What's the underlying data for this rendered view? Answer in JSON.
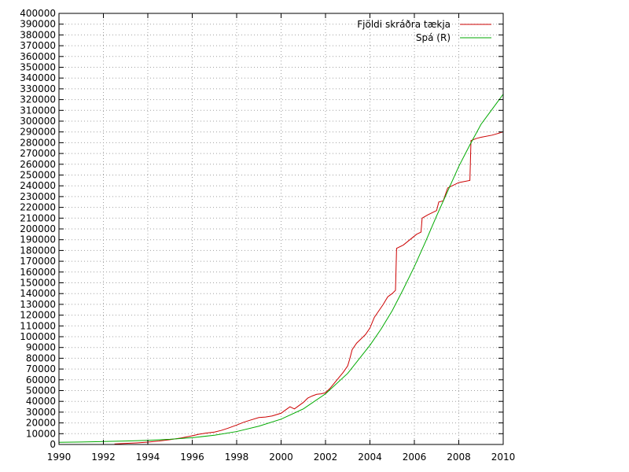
{
  "chart_data": {
    "type": "line",
    "title": "",
    "xlabel": "",
    "ylabel": "",
    "xlim": [
      1990,
      2010
    ],
    "ylim": [
      0,
      400000
    ],
    "x_ticks": [
      1990,
      1992,
      1994,
      1996,
      1998,
      2000,
      2002,
      2004,
      2006,
      2008,
      2010
    ],
    "x_tick_labels": [
      "1990",
      "1992",
      "1994",
      "1996",
      "1998",
      "2000",
      "2002",
      "2004",
      "2006",
      "2008",
      "2010"
    ],
    "y_ticks": [
      0,
      10000,
      20000,
      30000,
      40000,
      50000,
      60000,
      70000,
      80000,
      90000,
      100000,
      110000,
      120000,
      130000,
      140000,
      150000,
      160000,
      170000,
      180000,
      190000,
      200000,
      210000,
      220000,
      230000,
      240000,
      250000,
      260000,
      270000,
      280000,
      290000,
      300000,
      310000,
      320000,
      330000,
      340000,
      350000,
      360000,
      370000,
      380000,
      390000,
      400000
    ],
    "y_tick_labels": [
      "0",
      "10000",
      "20000",
      "30000",
      "40000",
      "50000",
      "60000",
      "70000",
      "80000",
      "90000",
      "100000",
      "110000",
      "120000",
      "130000",
      "140000",
      "150000",
      "160000",
      "170000",
      "180000",
      "190000",
      "200000",
      "210000",
      "220000",
      "230000",
      "240000",
      "250000",
      "260000",
      "270000",
      "280000",
      "290000",
      "300000",
      "310000",
      "320000",
      "330000",
      "340000",
      "350000",
      "360000",
      "370000",
      "380000",
      "390000",
      "400000"
    ],
    "grid": true,
    "legend_position": "top-right",
    "series": [
      {
        "name": "Fjöldi skráðra tækja",
        "color": "#cc0000",
        "x": [
          1992.5,
          1993.0,
          1993.5,
          1994.0,
          1994.5,
          1995.0,
          1995.5,
          1996.0,
          1996.3,
          1996.6,
          1997.0,
          1997.3,
          1997.6,
          1998.0,
          1998.3,
          1998.6,
          1999.0,
          1999.3,
          1999.6,
          2000.0,
          2000.2,
          2000.4,
          2000.6,
          2000.8,
          2001.0,
          2001.2,
          2001.4,
          2001.6,
          2001.8,
          2002.0,
          2002.2,
          2002.4,
          2002.6,
          2002.8,
          2003.0,
          2003.1,
          2003.2,
          2003.4,
          2003.6,
          2003.8,
          2004.0,
          2004.2,
          2004.4,
          2004.6,
          2004.8,
          2005.0,
          2005.15,
          2005.2,
          2005.5,
          2005.8,
          2006.1,
          2006.3,
          2006.35,
          2006.6,
          2006.8,
          2007.0,
          2007.1,
          2007.3,
          2007.5,
          2007.8,
          2008.0,
          2008.5,
          2008.55,
          2008.8,
          2009.0,
          2009.5,
          2010.0
        ],
        "y": [
          500,
          1000,
          1500,
          2200,
          3200,
          4500,
          6000,
          8000,
          9500,
          10500,
          11500,
          13000,
          15000,
          18000,
          20500,
          22500,
          25000,
          25500,
          26500,
          29000,
          32000,
          35000,
          33000,
          36000,
          39000,
          43000,
          45000,
          46500,
          47000,
          48000,
          52000,
          57000,
          62000,
          67000,
          73000,
          80000,
          88000,
          94000,
          98000,
          102000,
          108000,
          118000,
          124000,
          130000,
          137000,
          140000,
          143000,
          182000,
          185000,
          190000,
          195000,
          197000,
          210000,
          213000,
          215000,
          217000,
          225000,
          226000,
          238000,
          241000,
          243000,
          245000,
          282000,
          284000,
          285000,
          287000,
          290000
        ]
      },
      {
        "name": "Spá (R)",
        "color": "#00aa00",
        "x": [
          1990,
          1991,
          1992,
          1993,
          1994,
          1995,
          1996,
          1997,
          1998,
          1999,
          2000,
          2001,
          2002,
          2003,
          2004,
          2004.5,
          2005,
          2005.5,
          2006,
          2006.5,
          2007,
          2007.5,
          2008,
          2008.5,
          2009,
          2009.5,
          2010
        ],
        "y": [
          2000,
          2300,
          2700,
          3200,
          3800,
          4800,
          6300,
          8600,
          12000,
          17000,
          23500,
          33000,
          47000,
          66000,
          92000,
          107000,
          124000,
          144000,
          165000,
          188000,
          212000,
          235000,
          258000,
          278000,
          297000,
          311000,
          325000
        ]
      }
    ]
  }
}
